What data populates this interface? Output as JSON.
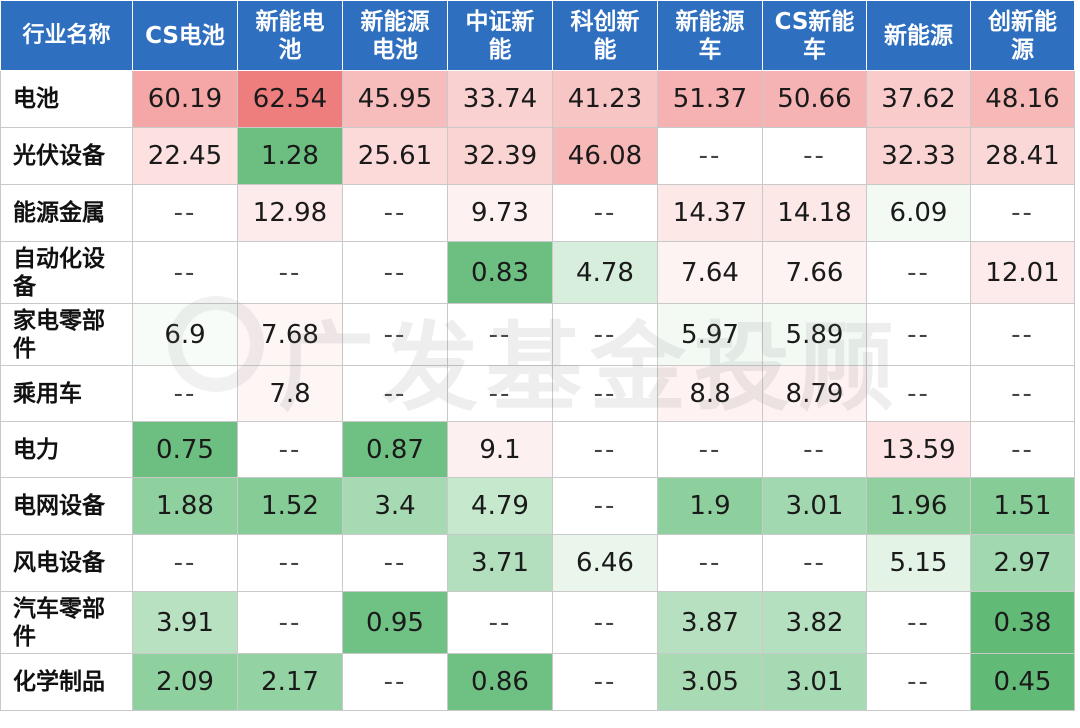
{
  "table": {
    "header_first": "行业名称",
    "columns": [
      "CS电池",
      "新能电\n池",
      "新能源\n电池",
      "中证新\n能",
      "科创新\n能",
      "新能源\n车",
      "CS新能\n车",
      "新能源",
      "创新能\n源"
    ],
    "rows": [
      {
        "name": "电池",
        "values": [
          "60.19",
          "62.54",
          "45.95",
          "33.74",
          "41.23",
          "51.37",
          "50.66",
          "37.62",
          "48.16"
        ]
      },
      {
        "name": "光伏设备",
        "values": [
          "22.45",
          "1.28",
          "25.61",
          "32.39",
          "46.08",
          "--",
          "--",
          "32.33",
          "28.41"
        ]
      },
      {
        "name": "能源金属",
        "values": [
          "--",
          "12.98",
          "--",
          "9.73",
          "--",
          "14.37",
          "14.18",
          "6.09",
          "--"
        ]
      },
      {
        "name": "自动化设\n备",
        "values": [
          "--",
          "--",
          "--",
          "0.83",
          "4.78",
          "7.64",
          "7.66",
          "--",
          "12.01"
        ]
      },
      {
        "name": "家电零部\n件",
        "values": [
          "6.9",
          "7.68",
          "--",
          "--",
          "--",
          "5.97",
          "5.89",
          "--",
          "--"
        ]
      },
      {
        "name": "乘用车",
        "values": [
          "--",
          "7.8",
          "--",
          "--",
          "--",
          "8.8",
          "8.79",
          "--",
          "--"
        ]
      },
      {
        "name": "电力",
        "values": [
          "0.75",
          "--",
          "0.87",
          "9.1",
          "--",
          "--",
          "--",
          "13.59",
          "--"
        ]
      },
      {
        "name": "电网设备",
        "values": [
          "1.88",
          "1.52",
          "3.4",
          "4.79",
          "--",
          "1.9",
          "3.01",
          "1.96",
          "1.51"
        ]
      },
      {
        "name": "风电设备",
        "values": [
          "--",
          "--",
          "--",
          "3.71",
          "6.46",
          "--",
          "--",
          "5.15",
          "2.97"
        ]
      },
      {
        "name": "汽车零部\n件",
        "values": [
          "3.91",
          "--",
          "0.95",
          "--",
          "--",
          "3.87",
          "3.82",
          "--",
          "0.38"
        ]
      },
      {
        "name": "化学制品",
        "values": [
          "2.09",
          "2.17",
          "--",
          "0.86",
          "--",
          "3.05",
          "3.01",
          "--",
          "0.45"
        ]
      }
    ],
    "cell_colors": [
      [
        "#f5a6a6",
        "#ee7e7e",
        "#f7bcbc",
        "#fad1d1",
        "#f8c5c5",
        "#f6b2b2",
        "#f6b3b3",
        "#f9cbcb",
        "#f7b8b8"
      ],
      [
        "#fde0e0",
        "#6cbf80",
        "#fcdada",
        "#fad3d3",
        "#f7b8b8",
        "#ffffff",
        "#ffffff",
        "#fad3d3",
        "#fbd8d8"
      ],
      [
        "#ffffff",
        "#fdeaea",
        "#ffffff",
        "#fdf1f1",
        "#ffffff",
        "#fde8e8",
        "#fde8e8",
        "#f3faf4",
        "#ffffff"
      ],
      [
        "#ffffff",
        "#ffffff",
        "#ffffff",
        "#6cbf80",
        "#d6eedb",
        "#fef3f3",
        "#fef3f3",
        "#ffffff",
        "#fdeaea"
      ],
      [
        "#f7fcf8",
        "#fef5f5",
        "#ffffff",
        "#ffffff",
        "#ffffff",
        "#f3faf4",
        "#f3faf4",
        "#ffffff",
        "#ffffff"
      ],
      [
        "#ffffff",
        "#fef5f5",
        "#ffffff",
        "#ffffff",
        "#ffffff",
        "#fef2f2",
        "#fef2f2",
        "#ffffff",
        "#ffffff"
      ],
      [
        "#6cbf80",
        "#ffffff",
        "#6fc183",
        "#fdf0f0",
        "#ffffff",
        "#ffffff",
        "#ffffff",
        "#fde5e5",
        "#ffffff"
      ],
      [
        "#8fd09f",
        "#86cc97",
        "#a6dab3",
        "#c6e8cd",
        "#ffffff",
        "#8ecf9e",
        "#a2d8af",
        "#90d09f",
        "#86cc97"
      ],
      [
        "#ffffff",
        "#ffffff",
        "#ffffff",
        "#b3dfbe",
        "#eaf6ec",
        "#ffffff",
        "#ffffff",
        "#e3f3e6",
        "#a2d8af"
      ],
      [
        "#b8e1c2",
        "#ffffff",
        "#70c184",
        "#ffffff",
        "#ffffff",
        "#b6e0c0",
        "#b5e0bf",
        "#ffffff",
        "#62ba77"
      ],
      [
        "#8fd09f",
        "#93d2a2",
        "#ffffff",
        "#6fc183",
        "#ffffff",
        "#a8dbb4",
        "#a6dab3",
        "#ffffff",
        "#62ba77"
      ]
    ]
  },
  "watermark": {
    "text": "广发基金投顾",
    "icon": "gf-logo-icon"
  },
  "colors": {
    "header_bg": "#2f6fc0",
    "header_text": "#ffffff",
    "high_red": "#ee7e7e",
    "low_green": "#62ba77"
  }
}
